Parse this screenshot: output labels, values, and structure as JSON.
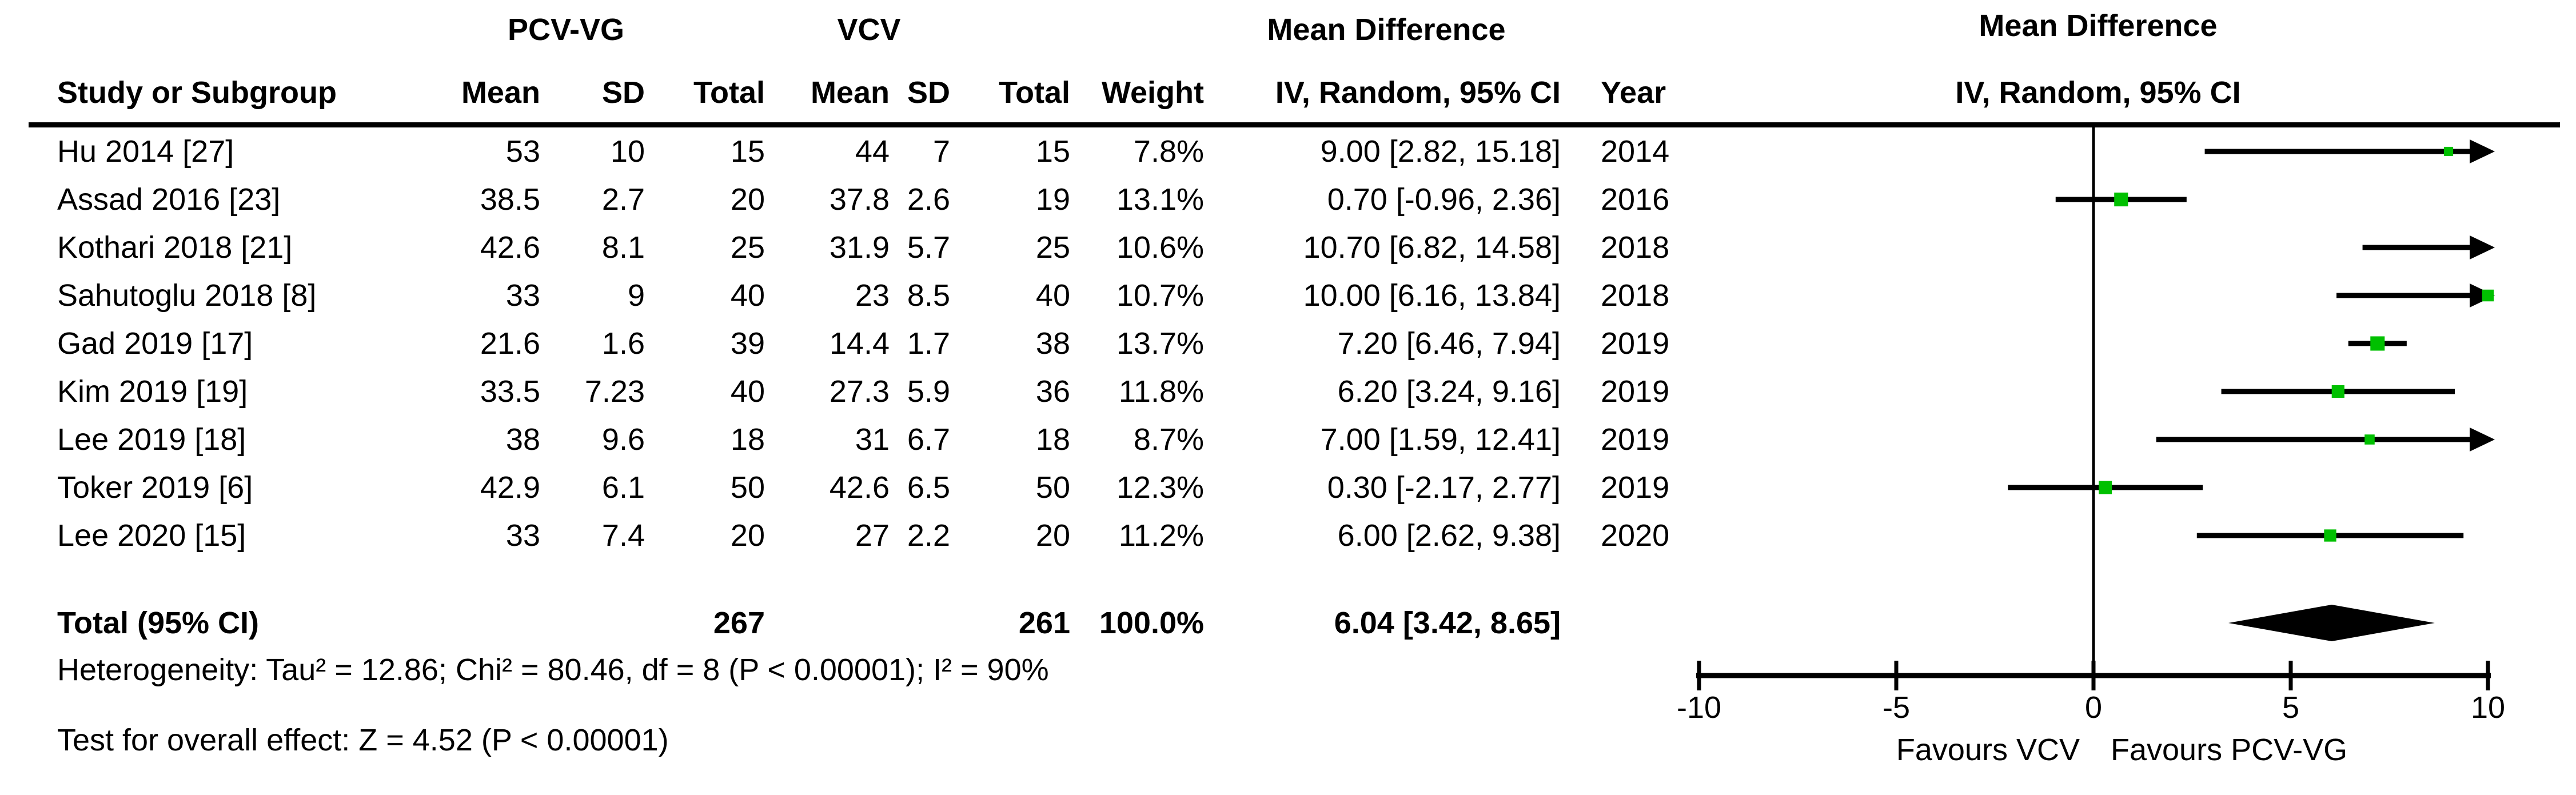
{
  "group_headers": {
    "experimental": "PCV-VG",
    "control": "VCV",
    "md_left": "Mean Difference",
    "md_right": "Mean Difference",
    "ci_right": "IV, Random, 95% CI"
  },
  "columns": {
    "study": "Study or Subgroup",
    "mean": "Mean",
    "sd": "SD",
    "total": "Total",
    "weight": "Weight",
    "ci": "IV, Random, 95% CI",
    "year": "Year"
  },
  "totals": {
    "label": "Total (95% CI)",
    "n_experimental": "267",
    "n_control": "261",
    "weight": "100.0%",
    "ci_text": "6.04 [3.42, 8.65]"
  },
  "footnotes": {
    "heterogeneity": "Heterogeneity: Tau² = 12.86; Chi² = 80.46, df = 8 (P < 0.00001); I² = 90%",
    "overall_effect": "Test for overall effect: Z = 4.52 (P < 0.00001)"
  },
  "axis_labels": {
    "favours_left": "Favours VCV",
    "favours_right": "Favours PCV-VG"
  },
  "colors": {
    "marker_green": "#00C000",
    "line_black": "#000000"
  },
  "chart_data": {
    "type": "forest_plot",
    "effect_measure": "Mean Difference",
    "method": "IV, Random, 95% CI",
    "x_axis": {
      "min": -10,
      "max": 10,
      "ticks": [
        -10,
        -5,
        0,
        5,
        10
      ],
      "favours_left": "Favours VCV",
      "favours_right": "Favours PCV-VG"
    },
    "studies": [
      {
        "name": "Hu 2014 [27]",
        "mean1": "53",
        "sd1": "10",
        "n1": "15",
        "mean2": "44",
        "sd2": "7",
        "n2": "15",
        "weight": "7.8%",
        "ci_text": "9.00 [2.82, 15.18]",
        "year": "2014",
        "md": 9.0,
        "lo": 2.82,
        "hi": 15.18,
        "weight_num": 7.8
      },
      {
        "name": "Assad 2016 [23]",
        "mean1": "38.5",
        "sd1": "2.7",
        "n1": "20",
        "mean2": "37.8",
        "sd2": "2.6",
        "n2": "19",
        "weight": "13.1%",
        "ci_text": "0.70 [-0.96, 2.36]",
        "year": "2016",
        "md": 0.7,
        "lo": -0.96,
        "hi": 2.36,
        "weight_num": 13.1
      },
      {
        "name": "Kothari 2018 [21]",
        "mean1": "42.6",
        "sd1": "8.1",
        "n1": "25",
        "mean2": "31.9",
        "sd2": "5.7",
        "n2": "25",
        "weight": "10.6%",
        "ci_text": "10.70 [6.82, 14.58]",
        "year": "2018",
        "md": 10.7,
        "lo": 6.82,
        "hi": 14.58,
        "weight_num": 10.6
      },
      {
        "name": "Sahutoglu 2018 [8]",
        "mean1": "33",
        "sd1": "9",
        "n1": "40",
        "mean2": "23",
        "sd2": "8.5",
        "n2": "40",
        "weight": "10.7%",
        "ci_text": "10.00 [6.16, 13.84]",
        "year": "2018",
        "md": 10.0,
        "lo": 6.16,
        "hi": 13.84,
        "weight_num": 10.7
      },
      {
        "name": "Gad 2019 [17]",
        "mean1": "21.6",
        "sd1": "1.6",
        "n1": "39",
        "mean2": "14.4",
        "sd2": "1.7",
        "n2": "38",
        "weight": "13.7%",
        "ci_text": "7.20 [6.46, 7.94]",
        "year": "2019",
        "md": 7.2,
        "lo": 6.46,
        "hi": 7.94,
        "weight_num": 13.7
      },
      {
        "name": "Kim 2019 [19]",
        "mean1": "33.5",
        "sd1": "7.23",
        "n1": "40",
        "mean2": "27.3",
        "sd2": "5.9",
        "n2": "36",
        "weight": "11.8%",
        "ci_text": "6.20 [3.24, 9.16]",
        "year": "2019",
        "md": 6.2,
        "lo": 3.24,
        "hi": 9.16,
        "weight_num": 11.8
      },
      {
        "name": "Lee 2019 [18]",
        "mean1": "38",
        "sd1": "9.6",
        "n1": "18",
        "mean2": "31",
        "sd2": "6.7",
        "n2": "18",
        "weight": "8.7%",
        "ci_text": "7.00 [1.59, 12.41]",
        "year": "2019",
        "md": 7.0,
        "lo": 1.59,
        "hi": 12.41,
        "weight_num": 8.7
      },
      {
        "name": "Toker 2019 [6]",
        "mean1": "42.9",
        "sd1": "6.1",
        "n1": "50",
        "mean2": "42.6",
        "sd2": "6.5",
        "n2": "50",
        "weight": "12.3%",
        "ci_text": "0.30 [-2.17, 2.77]",
        "year": "2019",
        "md": 0.3,
        "lo": -2.17,
        "hi": 2.77,
        "weight_num": 12.3
      },
      {
        "name": "Lee 2020 [15]",
        "mean1": "33",
        "sd1": "7.4",
        "n1": "20",
        "mean2": "27",
        "sd2": "2.2",
        "n2": "20",
        "weight": "11.2%",
        "ci_text": "6.00 [2.62, 9.38]",
        "year": "2020",
        "md": 6.0,
        "lo": 2.62,
        "hi": 9.38,
        "weight_num": 11.2
      }
    ],
    "total": {
      "label": "Total (95% CI)",
      "n1": 267,
      "n2": 261,
      "weight": "100.0%",
      "md": 6.04,
      "lo": 3.42,
      "hi": 8.65
    },
    "heterogeneity": {
      "tau2": 12.86,
      "chi2": 80.46,
      "df": 8,
      "p": "< 0.00001",
      "i2": "90%"
    },
    "overall_effect": {
      "z": 4.52,
      "p": "< 0.00001"
    }
  }
}
